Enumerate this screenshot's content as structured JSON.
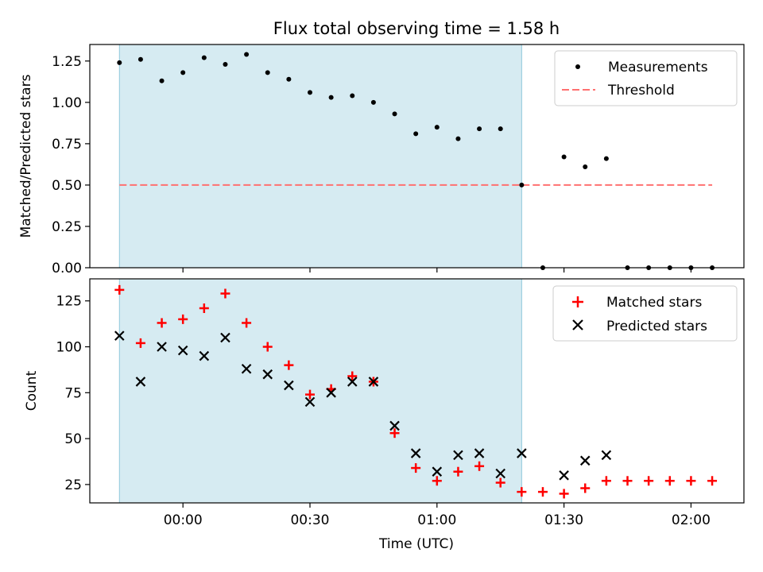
{
  "title": "Flux total observing time = 1.58 h",
  "chart_data": [
    {
      "type": "scatter",
      "panel": "top",
      "ylabel": "Matched/Predicted stars",
      "ylim": [
        0,
        1.35
      ],
      "yticks": [
        "0.00",
        "0.25",
        "0.50",
        "0.75",
        "1.00",
        "1.25"
      ],
      "ytick_values": [
        0,
        0.25,
        0.5,
        0.75,
        1.0,
        1.25
      ],
      "shaded_span": [
        "-00:15",
        "01:20"
      ],
      "threshold": {
        "y": 0.5,
        "x_range": [
          "-00:15",
          "02:05"
        ],
        "color": "#ff7070"
      },
      "series": [
        {
          "name": "Measurements",
          "color": "#000000",
          "x": [
            "-00:15",
            "-00:10",
            "-00:05",
            "00:00",
            "00:05",
            "00:10",
            "00:15",
            "00:20",
            "00:25",
            "00:30",
            "00:35",
            "00:40",
            "00:45",
            "00:50",
            "00:55",
            "01:00",
            "01:05",
            "01:10",
            "01:15",
            "01:20",
            "01:25",
            "01:30",
            "01:35",
            "01:40",
            "01:45",
            "01:50",
            "01:55",
            "02:00",
            "02:05"
          ],
          "y": [
            1.24,
            1.26,
            1.13,
            1.18,
            1.27,
            1.23,
            1.29,
            1.18,
            1.14,
            1.06,
            1.03,
            1.04,
            1.0,
            0.93,
            0.81,
            0.85,
            0.78,
            0.84,
            0.84,
            0.5,
            0.0,
            0.67,
            0.61,
            0.66,
            0.0,
            0.0,
            0.0,
            0.0,
            0.0
          ]
        }
      ],
      "legend": {
        "placement": "top-right",
        "measurements_label": "Measurements",
        "threshold_label": "Threshold"
      }
    },
    {
      "type": "scatter",
      "panel": "bottom",
      "xlabel": "Time (UTC)",
      "ylabel": "Count",
      "ylim": [
        15,
        137
      ],
      "yticks": [
        "25",
        "50",
        "75",
        "100",
        "125"
      ],
      "ytick_values": [
        25,
        50,
        75,
        100,
        125
      ],
      "xticks": [
        "00:00",
        "00:30",
        "01:00",
        "01:30",
        "02:00"
      ],
      "shaded_span": [
        "-00:15",
        "01:20"
      ],
      "series": [
        {
          "name": "Matched stars",
          "marker": "plus",
          "color": "#ff0000",
          "x": [
            "-00:15",
            "-00:10",
            "-00:05",
            "00:00",
            "00:05",
            "00:10",
            "00:15",
            "00:20",
            "00:25",
            "00:30",
            "00:35",
            "00:40",
            "00:45",
            "00:50",
            "00:55",
            "01:00",
            "01:05",
            "01:10",
            "01:15",
            "01:20",
            "01:25",
            "01:30",
            "01:35",
            "01:40",
            "01:45",
            "01:50",
            "01:55",
            "02:00",
            "02:05"
          ],
          "y": [
            131,
            102,
            113,
            115,
            121,
            129,
            113,
            100,
            90,
            74,
            77,
            84,
            81,
            53,
            34,
            27,
            32,
            35,
            26,
            21,
            21,
            20,
            23,
            27,
            27,
            27,
            27,
            27,
            27
          ]
        },
        {
          "name": "Predicted stars",
          "marker": "x",
          "color": "#000000",
          "x": [
            "-00:15",
            "-00:10",
            "-00:05",
            "00:00",
            "00:05",
            "00:10",
            "00:15",
            "00:20",
            "00:25",
            "00:30",
            "00:35",
            "00:40",
            "00:45",
            "00:50",
            "00:55",
            "01:00",
            "01:05",
            "01:10",
            "01:15",
            "01:20",
            "01:30",
            "01:35",
            "01:40"
          ],
          "y": [
            106,
            81,
            100,
            98,
            95,
            105,
            88,
            85,
            79,
            70,
            75,
            81,
            81,
            57,
            42,
            32,
            41,
            42,
            31,
            42,
            30,
            38,
            41
          ]
        }
      ],
      "legend": {
        "placement": "top-right",
        "matched_label": "Matched stars",
        "predicted_label": "Predicted stars"
      }
    }
  ]
}
